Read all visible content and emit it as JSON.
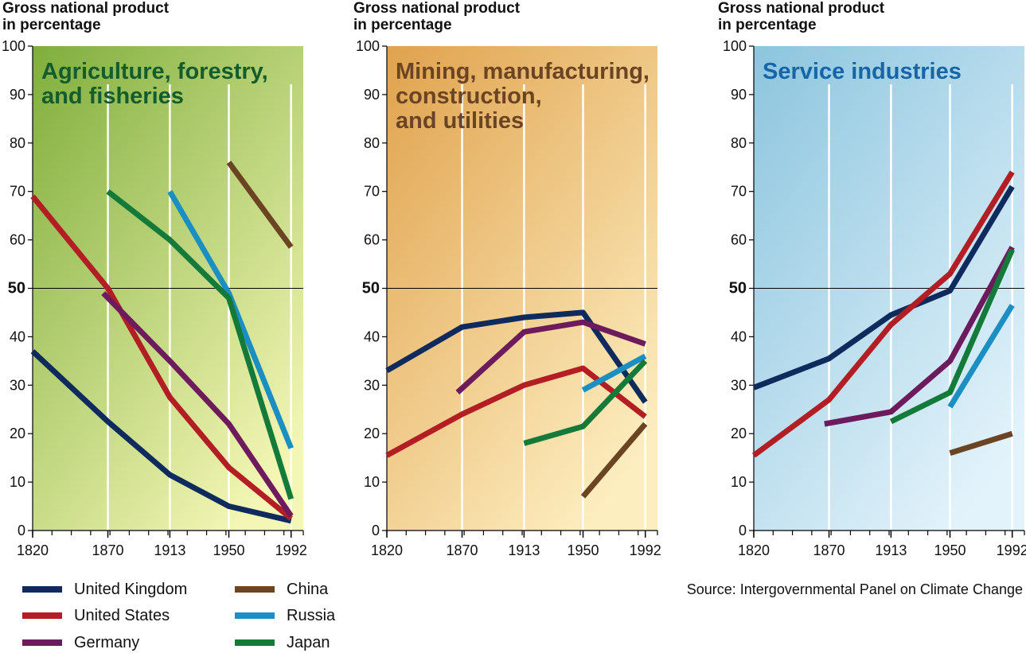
{
  "y_axis_title": "Gross national product\nin percentage",
  "source": "Source: Intergovernmental Panel on Climate Change",
  "colors": {
    "United Kingdom": "#0f2a5c",
    "United States": "#b31e24",
    "Germany": "#6e1b5e",
    "China": "#6b4423",
    "Russia": "#1b8ec2",
    "Japan": "#137a3a"
  },
  "legend": [
    {
      "name": "United Kingdom"
    },
    {
      "name": "United States"
    },
    {
      "name": "Germany"
    },
    {
      "name": "China"
    },
    {
      "name": "Russia"
    },
    {
      "name": "Japan"
    }
  ],
  "chart_data": [
    {
      "type": "line",
      "title": "Agriculture, forestry,\nand fisheries",
      "title_color": "#145c2c",
      "background": [
        "#7fae3c",
        "#f3f6b4"
      ],
      "ylabel": "Gross national product\nin percentage",
      "x_ticks": [
        "1820",
        "1870",
        "1913",
        "1950",
        "1992"
      ],
      "y_ticks": [
        "0",
        "10",
        "20",
        "30",
        "40",
        "50",
        "60",
        "70",
        "80",
        "90",
        "100"
      ],
      "ylim": [
        0,
        100
      ],
      "reference_line": 50,
      "series": [
        {
          "name": "United Kingdom",
          "points": [
            [
              1820,
              37
            ],
            [
              1870,
              22.5
            ],
            [
              1913,
              11.5
            ],
            [
              1950,
              5
            ],
            [
              1992,
              2
            ]
          ]
        },
        {
          "name": "United States",
          "points": [
            [
              1820,
              69
            ],
            [
              1870,
              50
            ],
            [
              1913,
              27.5
            ],
            [
              1950,
              13
            ],
            [
              1992,
              2.5
            ]
          ]
        },
        {
          "name": "Germany",
          "points": [
            [
              1867,
              49
            ],
            [
              1913,
              35
            ],
            [
              1950,
              22
            ],
            [
              1992,
              3
            ]
          ]
        },
        {
          "name": "China",
          "points": [
            [
              1950,
              76
            ],
            [
              1992,
              58.5
            ]
          ]
        },
        {
          "name": "Russia",
          "points": [
            [
              1913,
              70
            ],
            [
              1950,
              49
            ],
            [
              1992,
              17
            ]
          ]
        },
        {
          "name": "Japan",
          "points": [
            [
              1870,
              70
            ],
            [
              1913,
              60
            ],
            [
              1950,
              48
            ],
            [
              1992,
              6.5
            ]
          ]
        }
      ]
    },
    {
      "type": "line",
      "title": "Mining, manufacturing,\nconstruction,\nand utilities",
      "title_color": "#6b4423",
      "background": [
        "#e0a24d",
        "#fdeec0"
      ],
      "ylabel": "Gross national product\nin percentage",
      "x_ticks": [
        "1820",
        "1870",
        "1913",
        "1950",
        "1992"
      ],
      "y_ticks": [
        "0",
        "10",
        "20",
        "30",
        "40",
        "50",
        "60",
        "70",
        "80",
        "90",
        "100"
      ],
      "ylim": [
        0,
        100
      ],
      "reference_line": 50,
      "series": [
        {
          "name": "United Kingdom",
          "points": [
            [
              1820,
              33
            ],
            [
              1870,
              42
            ],
            [
              1913,
              44
            ],
            [
              1950,
              45
            ],
            [
              1992,
              26.5
            ]
          ]
        },
        {
          "name": "United States",
          "points": [
            [
              1820,
              15.5
            ],
            [
              1870,
              24
            ],
            [
              1913,
              30
            ],
            [
              1950,
              33.5
            ],
            [
              1992,
              23.5
            ]
          ]
        },
        {
          "name": "Germany",
          "points": [
            [
              1867,
              28.5
            ],
            [
              1913,
              41
            ],
            [
              1950,
              43
            ],
            [
              1992,
              38.5
            ]
          ]
        },
        {
          "name": "China",
          "points": [
            [
              1950,
              7
            ],
            [
              1992,
              22
            ]
          ]
        },
        {
          "name": "Russia",
          "points": [
            [
              1950,
              29
            ],
            [
              1992,
              36
            ]
          ]
        },
        {
          "name": "Japan",
          "points": [
            [
              1913,
              18
            ],
            [
              1950,
              21.5
            ],
            [
              1992,
              35
            ]
          ]
        }
      ]
    },
    {
      "type": "line",
      "title": "Service industries",
      "title_color": "#1565a8",
      "background": [
        "#8cc5de",
        "#e3f3fb"
      ],
      "ylabel": "Gross national product\nin percentage",
      "x_ticks": [
        "1820",
        "1870",
        "1913",
        "1950",
        "1992"
      ],
      "y_ticks": [
        "0",
        "10",
        "20",
        "30",
        "40",
        "50",
        "60",
        "70",
        "80",
        "90",
        "100"
      ],
      "ylim": [
        0,
        100
      ],
      "reference_line": 50,
      "series": [
        {
          "name": "United Kingdom",
          "points": [
            [
              1820,
              29.5
            ],
            [
              1870,
              35.5
            ],
            [
              1913,
              44.5
            ],
            [
              1950,
              49.5
            ],
            [
              1992,
              71
            ]
          ]
        },
        {
          "name": "United States",
          "points": [
            [
              1820,
              15.5
            ],
            [
              1870,
              27
            ],
            [
              1913,
              42.5
            ],
            [
              1950,
              53
            ],
            [
              1992,
              74
            ]
          ]
        },
        {
          "name": "Germany",
          "points": [
            [
              1867,
              22
            ],
            [
              1913,
              24.5
            ],
            [
              1950,
              35
            ],
            [
              1992,
              58.5
            ]
          ]
        },
        {
          "name": "China",
          "points": [
            [
              1950,
              16
            ],
            [
              1992,
              20
            ]
          ]
        },
        {
          "name": "Russia",
          "points": [
            [
              1950,
              25.5
            ],
            [
              1992,
              46.5
            ]
          ]
        },
        {
          "name": "Japan",
          "points": [
            [
              1913,
              22.5
            ],
            [
              1950,
              28.5
            ],
            [
              1992,
              58
            ]
          ]
        }
      ]
    }
  ]
}
